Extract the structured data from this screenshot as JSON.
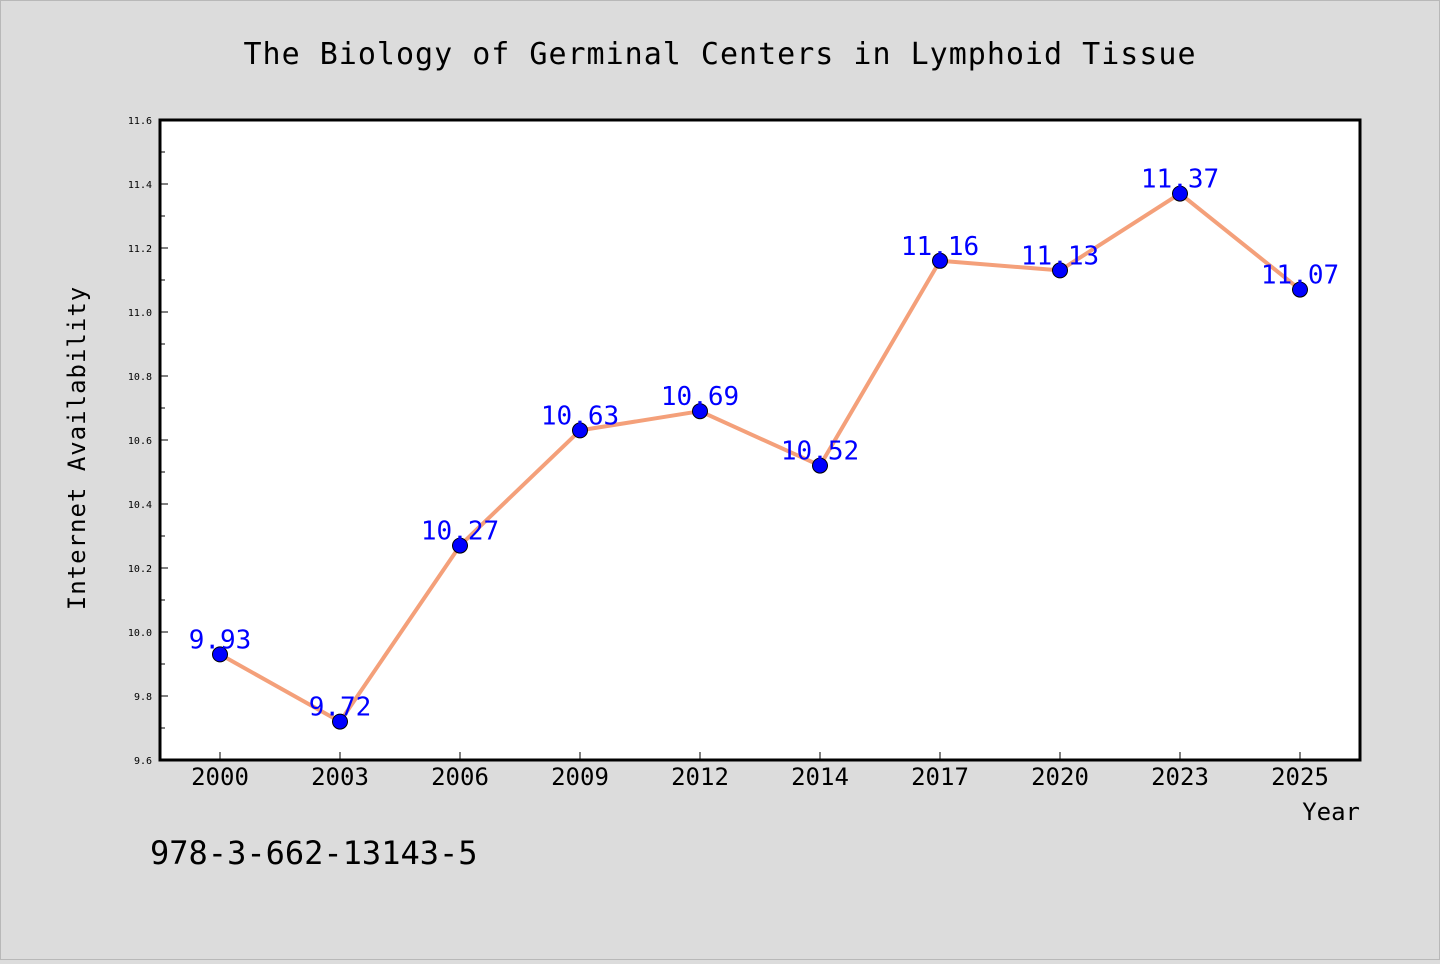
{
  "page": {
    "footer_text": "978-3-662-13143-5"
  },
  "colors": {
    "background": "#dcdcdc",
    "plot_bg": "#ffffff",
    "line": "#f4a07a",
    "marker": "#0000ff",
    "label": "#0000ff",
    "axis": "#000000"
  },
  "chart_data": {
    "type": "line",
    "title": "The Biology of Germinal Centers in Lymphoid Tissue",
    "xlabel": "Year",
    "ylabel": "Internet Availability",
    "categories": [
      "2000",
      "2003",
      "2006",
      "2009",
      "2012",
      "2014",
      "2017",
      "2020",
      "2023",
      "2025"
    ],
    "series": [
      {
        "values": [
          9.93,
          9.72,
          10.27,
          10.63,
          10.69,
          10.52,
          11.16,
          11.13,
          11.37,
          11.07
        ]
      }
    ],
    "data_labels": [
      "9.93",
      "9.72",
      "10.27",
      "10.63",
      "10.69",
      "10.52",
      "11.16",
      "11.13",
      "11.37",
      "11.07"
    ],
    "ylim": [
      9.6,
      11.6
    ],
    "yticks": [
      "9.6",
      "9.8",
      "10.0",
      "10.2",
      "10.4",
      "10.6",
      "10.8",
      "11.0",
      "11.2",
      "11.4",
      "11.6"
    ],
    "grid": false,
    "legend": "none"
  }
}
